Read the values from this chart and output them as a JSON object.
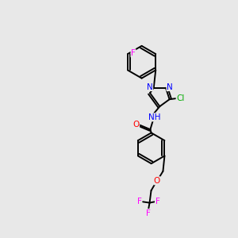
{
  "background_color": "#e8e8e8",
  "atom_colors": {
    "N": "#0000ff",
    "O": "#ff0000",
    "F": "#ff00ff",
    "Cl": "#00aa00"
  },
  "bond_color": "#000000",
  "lw": 1.4,
  "dbo": 0.12
}
